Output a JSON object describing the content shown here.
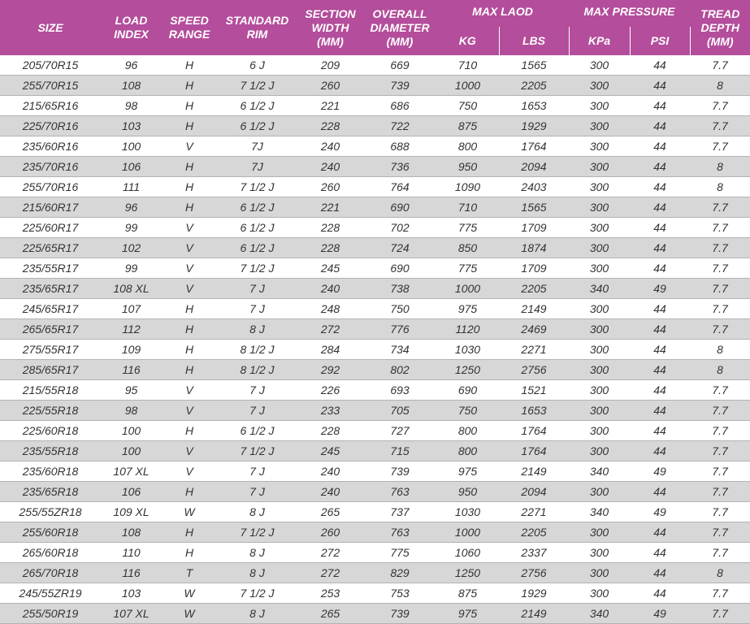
{
  "headers": {
    "size": "SIZE",
    "load_index": [
      "LOAD",
      "INDEX"
    ],
    "speed_range": [
      "SPEED",
      "RANGE"
    ],
    "standard_rim": [
      "STANDARD",
      "RIM"
    ],
    "section_width": [
      "SECTION",
      "WIDTH",
      "(MM)"
    ],
    "overall_diameter": [
      "OVERALL",
      "DIAMETER",
      "(MM)"
    ],
    "max_load": "MAX LAOD",
    "kg": "KG",
    "lbs": "LBS",
    "max_pressure": "MAX PRESSURE",
    "kpa": "KPa",
    "psi": "PSI",
    "tread_depth": [
      "TREAD",
      "DEPTH",
      "(MM)"
    ]
  },
  "rows": [
    [
      "205/70R15",
      "96",
      "H",
      "6 J",
      "209",
      "669",
      "710",
      "1565",
      "300",
      "44",
      "7.7"
    ],
    [
      "255/70R15",
      "108",
      "H",
      "7 1/2 J",
      "260",
      "739",
      "1000",
      "2205",
      "300",
      "44",
      "8"
    ],
    [
      "215/65R16",
      "98",
      "H",
      "6 1/2 J",
      "221",
      "686",
      "750",
      "1653",
      "300",
      "44",
      "7.7"
    ],
    [
      "225/70R16",
      "103",
      "H",
      "6 1/2 J",
      "228",
      "722",
      "875",
      "1929",
      "300",
      "44",
      "7.7"
    ],
    [
      "235/60R16",
      "100",
      "V",
      "7J",
      "240",
      "688",
      "800",
      "1764",
      "300",
      "44",
      "7.7"
    ],
    [
      "235/70R16",
      "106",
      "H",
      "7J",
      "240",
      "736",
      "950",
      "2094",
      "300",
      "44",
      "8"
    ],
    [
      "255/70R16",
      "111",
      "H",
      "7 1/2 J",
      "260",
      "764",
      "1090",
      "2403",
      "300",
      "44",
      "8"
    ],
    [
      "215/60R17",
      "96",
      "H",
      "6 1/2 J",
      "221",
      "690",
      "710",
      "1565",
      "300",
      "44",
      "7.7"
    ],
    [
      "225/60R17",
      "99",
      "V",
      "6 1/2 J",
      "228",
      "702",
      "775",
      "1709",
      "300",
      "44",
      "7.7"
    ],
    [
      "225/65R17",
      "102",
      "V",
      "6 1/2 J",
      "228",
      "724",
      "850",
      "1874",
      "300",
      "44",
      "7.7"
    ],
    [
      "235/55R17",
      "99",
      "V",
      "7 1/2 J",
      "245",
      "690",
      "775",
      "1709",
      "300",
      "44",
      "7.7"
    ],
    [
      "235/65R17",
      "108 XL",
      "V",
      "7 J",
      "240",
      "738",
      "1000",
      "2205",
      "340",
      "49",
      "7.7"
    ],
    [
      "245/65R17",
      "107",
      "H",
      "7 J",
      "248",
      "750",
      "975",
      "2149",
      "300",
      "44",
      "7.7"
    ],
    [
      "265/65R17",
      "112",
      "H",
      "8 J",
      "272",
      "776",
      "1120",
      "2469",
      "300",
      "44",
      "7.7"
    ],
    [
      "275/55R17",
      "109",
      "H",
      "8 1/2 J",
      "284",
      "734",
      "1030",
      "2271",
      "300",
      "44",
      "8"
    ],
    [
      "285/65R17",
      "116",
      "H",
      "8 1/2 J",
      "292",
      "802",
      "1250",
      "2756",
      "300",
      "44",
      "8"
    ],
    [
      "215/55R18",
      "95",
      "V",
      "7 J",
      "226",
      "693",
      "690",
      "1521",
      "300",
      "44",
      "7.7"
    ],
    [
      "225/55R18",
      "98",
      "V",
      "7 J",
      "233",
      "705",
      "750",
      "1653",
      "300",
      "44",
      "7.7"
    ],
    [
      "225/60R18",
      "100",
      "H",
      "6 1/2 J",
      "228",
      "727",
      "800",
      "1764",
      "300",
      "44",
      "7.7"
    ],
    [
      "235/55R18",
      "100",
      "V",
      "7 1/2 J",
      "245",
      "715",
      "800",
      "1764",
      "300",
      "44",
      "7.7"
    ],
    [
      "235/60R18",
      "107 XL",
      "V",
      "7 J",
      "240",
      "739",
      "975",
      "2149",
      "340",
      "49",
      "7.7"
    ],
    [
      "235/65R18",
      "106",
      "H",
      "7 J",
      "240",
      "763",
      "950",
      "2094",
      "300",
      "44",
      "7.7"
    ],
    [
      "255/55ZR18",
      "109 XL",
      "W",
      "8 J",
      "265",
      "737",
      "1030",
      "2271",
      "340",
      "49",
      "7.7"
    ],
    [
      "255/60R18",
      "108",
      "H",
      "7 1/2 J",
      "260",
      "763",
      "1000",
      "2205",
      "300",
      "44",
      "7.7"
    ],
    [
      "265/60R18",
      "110",
      "H",
      "8 J",
      "272",
      "775",
      "1060",
      "2337",
      "300",
      "44",
      "7.7"
    ],
    [
      "265/70R18",
      "116",
      "T",
      "8 J",
      "272",
      "829",
      "1250",
      "2756",
      "300",
      "44",
      "8"
    ],
    [
      "245/55ZR19",
      "103",
      "W",
      "7 1/2 J",
      "253",
      "753",
      "875",
      "1929",
      "300",
      "44",
      "7.7"
    ],
    [
      "255/50R19",
      "107 XL",
      "W",
      "8 J",
      "265",
      "739",
      "975",
      "2149",
      "340",
      "49",
      "7.7"
    ]
  ]
}
